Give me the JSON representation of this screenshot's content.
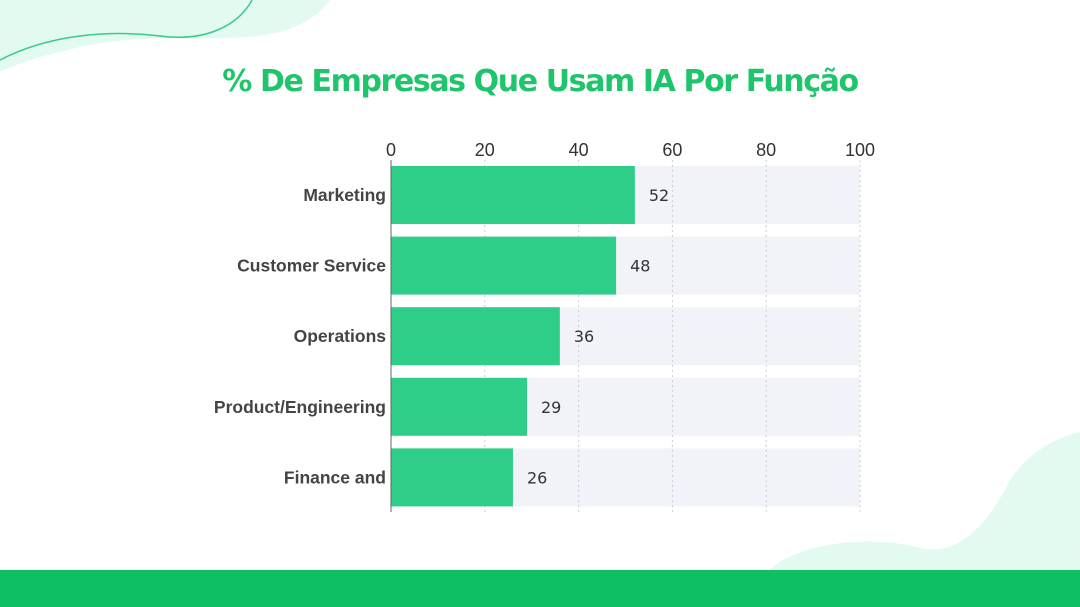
{
  "title": "% De Empresas Que Usam IA Por Função",
  "colors": {
    "bar": "#2fce88",
    "track": "#f1f3f8",
    "title": "#1fc56a",
    "footer": "#0fc062",
    "decoration": "#e3faf0"
  },
  "chart_data": {
    "type": "bar",
    "orientation": "horizontal",
    "title": "% De Empresas Que Usam IA Por Função",
    "categories": [
      "Marketing",
      "Customer Service",
      "Operations",
      "Product/Engineering",
      "Finance and"
    ],
    "values": [
      52,
      48,
      36,
      29,
      26
    ],
    "xlim": [
      0,
      100
    ],
    "xticks": [
      0,
      20,
      40,
      60,
      80,
      100
    ],
    "xaxis_position": "top",
    "grid": true,
    "data_labels": true,
    "legend": "none"
  }
}
